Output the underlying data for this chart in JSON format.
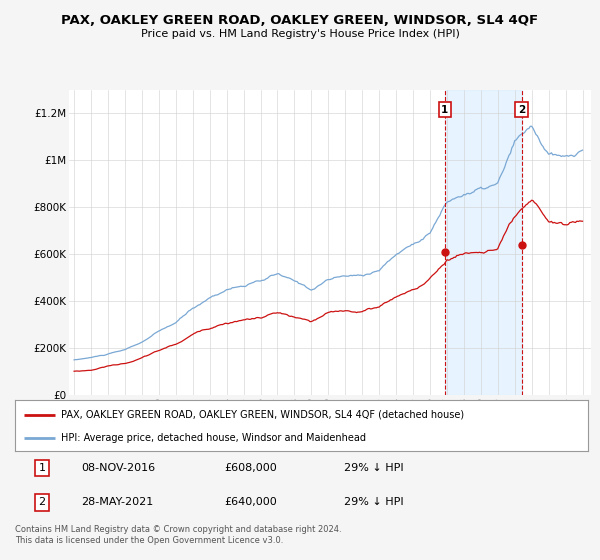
{
  "title": "PAX, OAKLEY GREEN ROAD, OAKLEY GREEN, WINDSOR, SL4 4QF",
  "subtitle": "Price paid vs. HM Land Registry's House Price Index (HPI)",
  "hpi_color": "#7aa8d4",
  "price_color": "#cc1111",
  "background_color": "#f5f5f5",
  "plot_bg": "#ffffff",
  "shade_between_color": "#ddeeff",
  "ylim": [
    0,
    1300000
  ],
  "yticks": [
    0,
    200000,
    400000,
    600000,
    800000,
    1000000,
    1200000
  ],
  "ytick_labels": [
    "£0",
    "£200K",
    "£400K",
    "£600K",
    "£800K",
    "£1M",
    "£1.2M"
  ],
  "sale1_x": 2016.87,
  "sale1_price": 608000,
  "sale1_label": "08-NOV-2016",
  "sale2_x": 2021.41,
  "sale2_price": 640000,
  "sale2_label": "28-MAY-2021",
  "legend_line1": "PAX, OAKLEY GREEN ROAD, OAKLEY GREEN, WINDSOR, SL4 4QF (detached house)",
  "legend_line2": "HPI: Average price, detached house, Windsor and Maidenhead",
  "table_row1": [
    "1",
    "08-NOV-2016",
    "£608,000",
    "29% ↓ HPI"
  ],
  "table_row2": [
    "2",
    "28-MAY-2021",
    "£640,000",
    "29% ↓ HPI"
  ],
  "footer": "Contains HM Land Registry data © Crown copyright and database right 2024.\nThis data is licensed under the Open Government Licence v3.0."
}
